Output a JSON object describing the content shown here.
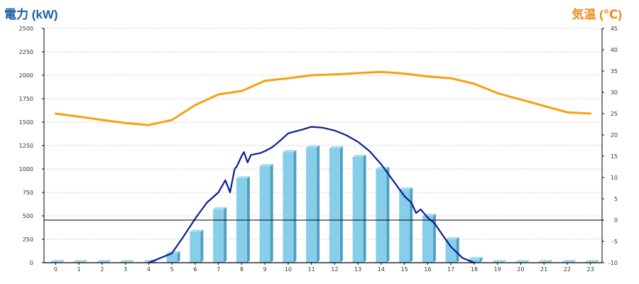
{
  "header": {
    "left_axis_title": "電力 (kW)",
    "right_axis_title": "気温 (℃)"
  },
  "colors": {
    "left_title": "#1a5da8",
    "right_title": "#ee8a1a",
    "bar_front": "#87ceea",
    "bar_side": "#4f9fc2",
    "bar_top": "#a9dcf0",
    "power_line": "#0a1f8f",
    "temp_line": "#f5a111",
    "grid": "#bbbbbb",
    "zero_line": "#000000"
  },
  "chart_data": {
    "type": "bar",
    "title": "",
    "xlabel": "",
    "ylabel": "電力 (kW)",
    "y2label": "気温 (℃)",
    "categories": [
      "0",
      "1",
      "2",
      "3",
      "4",
      "5",
      "6",
      "7",
      "8",
      "9",
      "10",
      "11",
      "12",
      "13",
      "14",
      "15",
      "16",
      "17",
      "18",
      "19",
      "20",
      "21",
      "22",
      "23"
    ],
    "ylim": [
      0,
      2500
    ],
    "yticks": [
      0,
      250,
      500,
      750,
      1000,
      1250,
      1500,
      1750,
      2000,
      2250,
      2500
    ],
    "y2lim": [
      -10,
      45
    ],
    "y2ticks": [
      -10,
      -5,
      0,
      5,
      10,
      15,
      20,
      25,
      30,
      35,
      40,
      45
    ],
    "grid": true,
    "series": [
      {
        "name": "",
        "kind": "bar",
        "axis": "left",
        "values": [
          0,
          0,
          0,
          0,
          0,
          100,
          330,
          570,
          900,
          1030,
          1180,
          1230,
          1220,
          1130,
          1000,
          780,
          500,
          250,
          40,
          0,
          0,
          0,
          0,
          0
        ]
      },
      {
        "name": "",
        "kind": "line",
        "axis": "left",
        "x": [
          4,
          5,
          5.5,
          6,
          6.5,
          7,
          7.3,
          7.5,
          7.7,
          7.8,
          8,
          8.1,
          8.25,
          8.4,
          8.6,
          8.8,
          9,
          9.3,
          9.6,
          10,
          10.3,
          10.6,
          11,
          11.5,
          12,
          12.5,
          13,
          13.5,
          14,
          14.5,
          15,
          15.3,
          15.5,
          15.7,
          16,
          16.3,
          16.6,
          17,
          17.5,
          18
        ],
        "values": [
          0,
          100,
          280,
          470,
          640,
          750,
          880,
          750,
          1000,
          1030,
          1140,
          1180,
          1070,
          1150,
          1160,
          1170,
          1190,
          1230,
          1290,
          1380,
          1400,
          1420,
          1450,
          1440,
          1410,
          1360,
          1290,
          1190,
          1050,
          880,
          710,
          640,
          530,
          570,
          480,
          420,
          310,
          170,
          50,
          0
        ]
      },
      {
        "name": "",
        "kind": "line",
        "axis": "right",
        "x": [
          0,
          1,
          2,
          3,
          4,
          5,
          6,
          7,
          8,
          9,
          10,
          11,
          12,
          13,
          14,
          15,
          16,
          17,
          18,
          19,
          20,
          21,
          22,
          23
        ],
        "values": [
          25,
          24.3,
          23.5,
          22.8,
          22.3,
          23.5,
          27,
          29.5,
          30.3,
          32.7,
          33.3,
          34,
          34.2,
          34.5,
          34.8,
          34.4,
          33.7,
          33.3,
          32,
          29.8,
          28.3,
          26.8,
          25.3,
          25
        ]
      }
    ]
  }
}
